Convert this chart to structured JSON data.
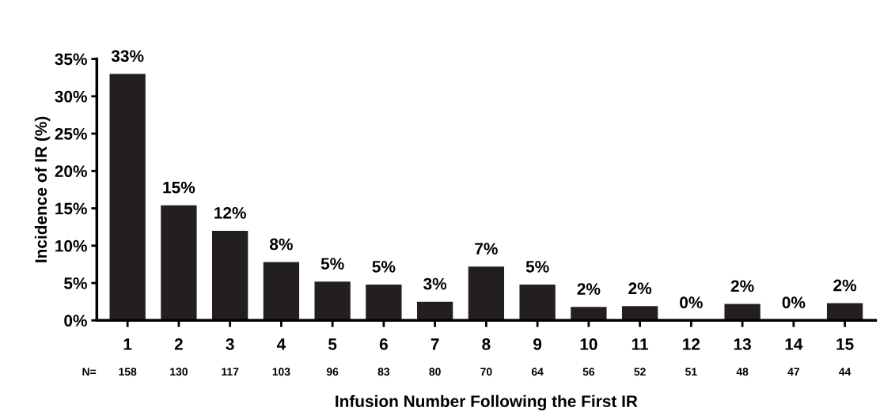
{
  "chart_data": {
    "type": "bar",
    "xlabel": "Infusion Number Following the First IR",
    "ylabel": "Incidence of IR (%)",
    "categories": [
      "1",
      "2",
      "3",
      "4",
      "5",
      "6",
      "7",
      "8",
      "9",
      "10",
      "11",
      "12",
      "13",
      "14",
      "15"
    ],
    "values": [
      33,
      15.4,
      12,
      7.8,
      5.2,
      4.8,
      2.5,
      7.2,
      4.8,
      1.8,
      1.9,
      0,
      2.2,
      0,
      2.3
    ],
    "value_labels": [
      "33%",
      "15%",
      "12%",
      "8%",
      "5%",
      "5%",
      "3%",
      "7%",
      "5%",
      "2%",
      "2%",
      "0%",
      "2%",
      "0%",
      "2%"
    ],
    "color": "#231f20",
    "ylim": [
      0,
      35
    ],
    "yticks": [
      {
        "value": 0,
        "label": "0%"
      },
      {
        "value": 5,
        "label": "5%"
      },
      {
        "value": 10,
        "label": "10%"
      },
      {
        "value": 15,
        "label": "15%"
      },
      {
        "value": 20,
        "label": "20%"
      },
      {
        "value": 25,
        "label": "25%"
      },
      {
        "value": 30,
        "label": "30%"
      },
      {
        "value": 35,
        "label": "35%"
      }
    ],
    "grid": false,
    "legend": false,
    "annotations": [
      "N=",
      "158",
      "130",
      "117",
      "103",
      "96",
      "83",
      "80",
      "70",
      "64",
      "56",
      "52",
      "51",
      "48",
      "47",
      "44"
    ]
  }
}
